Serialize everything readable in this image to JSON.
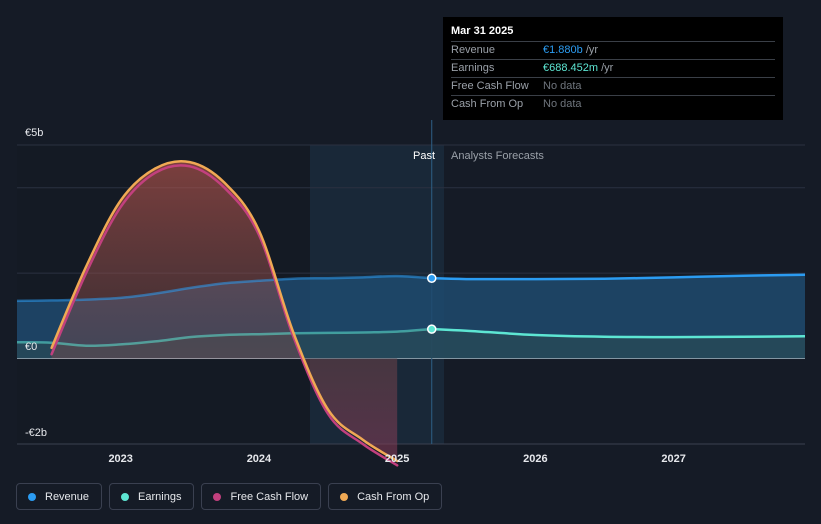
{
  "chart_data": {
    "type": "area",
    "currency_unit": "€",
    "y_ticks": [
      {
        "value": 5,
        "label": "€5b"
      },
      {
        "value": 0,
        "label": "€0"
      },
      {
        "value": -2,
        "label": "-€2b"
      }
    ],
    "ylim": [
      -2,
      5
    ],
    "xlim": [
      2022.25,
      2027.95
    ],
    "x_ticks": [
      {
        "value": 2023,
        "label": "2023"
      },
      {
        "value": 2024,
        "label": "2024"
      },
      {
        "value": 2025,
        "label": "2025"
      },
      {
        "value": 2026,
        "label": "2026"
      },
      {
        "value": 2027,
        "label": "2027"
      }
    ],
    "past_end": 2025.25,
    "past_label": "Past",
    "forecast_label": "Analysts Forecasts",
    "grid": true,
    "series": [
      {
        "name": "Revenue",
        "color": "#2b9cf2",
        "x": [
          2022.25,
          2022.5,
          2022.75,
          2023.0,
          2023.25,
          2023.5,
          2023.75,
          2024.0,
          2024.25,
          2024.5,
          2024.75,
          2025.0,
          2025.25,
          2025.5,
          2026.0,
          2026.5,
          2027.0,
          2027.5,
          2027.95
        ],
        "values": [
          1.35,
          1.36,
          1.38,
          1.42,
          1.52,
          1.65,
          1.76,
          1.82,
          1.87,
          1.88,
          1.9,
          1.93,
          1.88,
          1.86,
          1.86,
          1.87,
          1.9,
          1.94,
          1.96
        ]
      },
      {
        "name": "Earnings",
        "color": "#5de6d3",
        "x": [
          2022.25,
          2022.5,
          2022.75,
          2023.0,
          2023.25,
          2023.5,
          2023.75,
          2024.0,
          2024.25,
          2024.5,
          2024.75,
          2025.0,
          2025.25,
          2025.5,
          2026.0,
          2026.5,
          2027.0,
          2027.5,
          2027.95
        ],
        "values": [
          0.38,
          0.37,
          0.3,
          0.33,
          0.4,
          0.5,
          0.55,
          0.57,
          0.59,
          0.6,
          0.61,
          0.63,
          0.69,
          0.65,
          0.55,
          0.51,
          0.5,
          0.51,
          0.52
        ]
      },
      {
        "name": "Free Cash Flow",
        "color": "#c2407e",
        "x": [
          2022.5,
          2022.75,
          2023.0,
          2023.25,
          2023.5,
          2023.75,
          2024.0,
          2024.25,
          2024.5,
          2024.75,
          2025.0
        ],
        "values": [
          0.1,
          2.0,
          3.55,
          4.35,
          4.5,
          4.0,
          2.9,
          0.5,
          -1.3,
          -2.0,
          -2.5
        ]
      },
      {
        "name": "Cash From Op",
        "color": "#f0a954",
        "x": [
          2022.5,
          2022.75,
          2023.0,
          2023.25,
          2023.5,
          2023.75,
          2024.0,
          2024.25,
          2024.5,
          2024.75,
          2025.0
        ],
        "values": [
          0.25,
          2.15,
          3.7,
          4.45,
          4.6,
          4.12,
          3.0,
          0.6,
          -1.2,
          -1.9,
          -2.4
        ]
      }
    ],
    "markers": [
      {
        "series": "Revenue",
        "x": 2025.25,
        "value": 1.88
      },
      {
        "series": "Earnings",
        "x": 2025.25,
        "value": 0.688
      }
    ]
  },
  "tooltip": {
    "date": "Mar 31 2025",
    "rows": [
      {
        "label": "Revenue",
        "value": "€1.880b",
        "unit": " /yr"
      },
      {
        "label": "Earnings",
        "value": "€688.452m",
        "unit": " /yr"
      },
      {
        "label": "Free Cash Flow",
        "value": "No data",
        "unit": ""
      },
      {
        "label": "Cash From Op",
        "value": "No data",
        "unit": ""
      }
    ]
  },
  "legend": [
    {
      "label": "Revenue",
      "color": "#2b9cf2"
    },
    {
      "label": "Earnings",
      "color": "#5de6d3"
    },
    {
      "label": "Free Cash Flow",
      "color": "#c2407e"
    },
    {
      "label": "Cash From Op",
      "color": "#f0a954"
    }
  ]
}
